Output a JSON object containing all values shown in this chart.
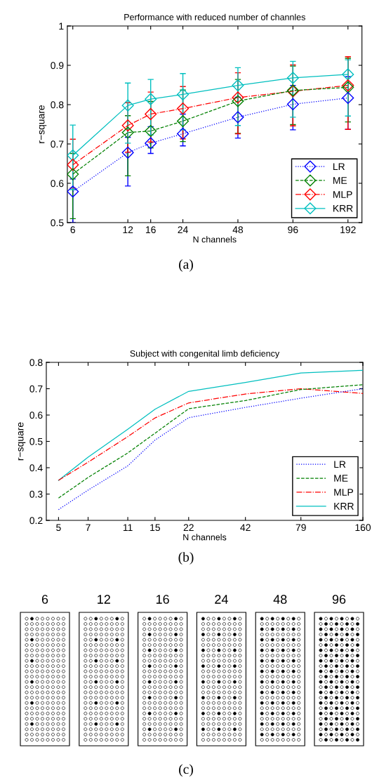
{
  "chart_data": [
    {
      "type": "line",
      "title": "Performance with reduced number of channles",
      "xlabel": "N channels",
      "ylabel": "r−square",
      "x": [
        6,
        12,
        16,
        24,
        48,
        96,
        192
      ],
      "xlim": [
        5.6,
        229
      ],
      "log": "x",
      "xticks": [
        6,
        12,
        16,
        24,
        48,
        96,
        192
      ],
      "ylim": [
        0.5,
        1
      ],
      "yticks": [
        0.5,
        0.6,
        0.7,
        0.8,
        0.9,
        1
      ],
      "marker": "diamond",
      "legend": "bottom right",
      "grid": false,
      "annotations": [
        "(a)"
      ],
      "series": [
        {
          "name": "LR",
          "color": "#0000ff",
          "line_style": "dotted",
          "values": [
            0.579,
            0.678,
            0.702,
            0.726,
            0.768,
            0.801,
            0.817
          ],
          "errors": [
            [
              0.5,
              0.611
            ],
            [
              0.593,
              0.717
            ],
            [
              0.676,
              0.744
            ],
            [
              0.695,
              0.776
            ],
            [
              0.715,
              0.819
            ],
            [
              0.736,
              0.849
            ],
            [
              0.737,
              0.871
            ]
          ]
        },
        {
          "name": "ME",
          "color": "#008000",
          "line_style": "dashed",
          "values": [
            0.623,
            0.729,
            0.733,
            0.758,
            0.809,
            0.836,
            0.844
          ],
          "errors": [
            [
              0.51,
              0.676
            ],
            [
              0.619,
              0.772
            ],
            [
              0.69,
              0.808
            ],
            [
              0.706,
              0.837
            ],
            [
              0.727,
              0.864
            ],
            [
              0.749,
              0.898
            ],
            [
              0.756,
              0.918
            ]
          ]
        },
        {
          "name": "MLP",
          "color": "#ff0000",
          "line_style": "dashdot",
          "values": [
            0.647,
            0.747,
            0.776,
            0.79,
            0.818,
            0.834,
            0.849
          ],
          "errors": [
            [
              0.588,
              0.712
            ],
            [
              0.679,
              0.805
            ],
            [
              0.705,
              0.832
            ],
            [
              0.713,
              0.846
            ],
            [
              0.726,
              0.881
            ],
            [
              0.746,
              0.901
            ],
            [
              0.737,
              0.922
            ]
          ]
        },
        {
          "name": "KRR",
          "color": "#00bfbf",
          "line_style": "solid",
          "values": [
            0.671,
            0.798,
            0.814,
            0.826,
            0.849,
            0.868,
            0.877
          ],
          "errors": [
            [
              0.584,
              0.748
            ],
            [
              0.702,
              0.855
            ],
            [
              0.723,
              0.864
            ],
            [
              0.736,
              0.879
            ],
            [
              0.747,
              0.894
            ],
            [
              0.768,
              0.91
            ],
            [
              0.771,
              0.914
            ]
          ]
        }
      ]
    },
    {
      "type": "line",
      "title": "Subject with congenital limb deficiency",
      "xlabel": "N channels",
      "ylabel": "r−square",
      "x": [
        5,
        7,
        11,
        15,
        22,
        42,
        79,
        160
      ],
      "xlim": [
        4.35,
        160
      ],
      "log": "x",
      "xticks": [
        5,
        7,
        11,
        15,
        22,
        42,
        79,
        160
      ],
      "ylim": [
        0.2,
        0.8
      ],
      "yticks": [
        0.2,
        0.3,
        0.4,
        0.5,
        0.6,
        0.7,
        0.8
      ],
      "legend": "bottom right",
      "grid": false,
      "annotations": [
        "(b)"
      ],
      "series": [
        {
          "name": "LR",
          "color": "#0000ff",
          "line_style": "dotted",
          "values": [
            0.241,
            0.315,
            0.407,
            0.505,
            0.59,
            0.629,
            0.664,
            0.7
          ]
        },
        {
          "name": "ME",
          "color": "#008000",
          "line_style": "dashed",
          "values": [
            0.285,
            0.363,
            0.456,
            0.531,
            0.624,
            0.655,
            0.697,
            0.715
          ]
        },
        {
          "name": "MLP",
          "color": "#ff0000",
          "line_style": "dashdot",
          "values": [
            0.352,
            0.421,
            0.518,
            0.589,
            0.646,
            0.68,
            0.7,
            0.682
          ]
        },
        {
          "name": "KRR",
          "color": "#00bfbf",
          "line_style": "solid",
          "values": [
            0.352,
            0.44,
            0.546,
            0.622,
            0.69,
            0.724,
            0.76,
            0.77
          ]
        }
      ]
    },
    {
      "type": "other",
      "annotations": [
        "6",
        "12",
        "16",
        "24",
        "48",
        "96",
        "(c)"
      ]
    }
  ]
}
